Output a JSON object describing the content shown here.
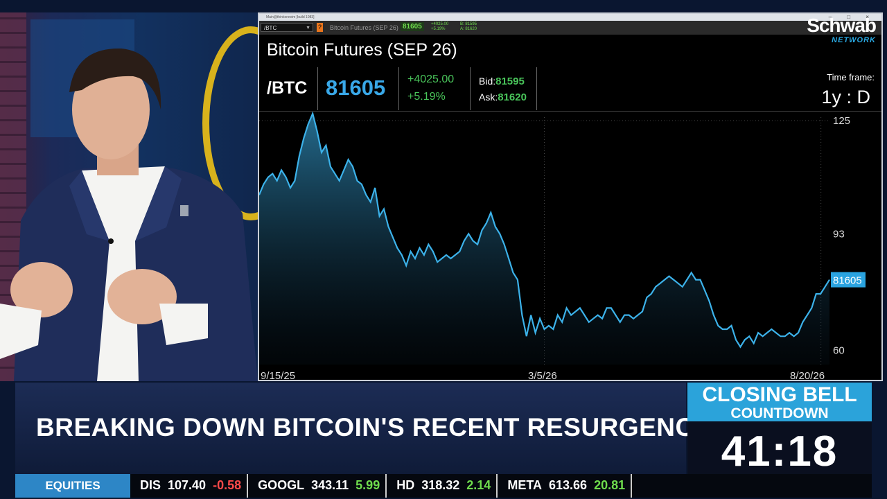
{
  "window": {
    "title": "Main@thinkorswim [build 1983]",
    "controls": "– □ ×"
  },
  "toolbar": {
    "symbol": "/BTC",
    "description": "Bitcoin Futures (SEP 26)",
    "last": "81605",
    "change_line1": "+4025.00",
    "change_line2": "+5.19%",
    "bid_line": "B: 81595",
    "ask_line": "A: 81620"
  },
  "quote": {
    "title": "Bitcoin Futures (SEP 26)",
    "symbol": "/BTC",
    "price": "81605",
    "change": "+4025.00",
    "change_pct": "+5.19%",
    "bid_label": "Bid:",
    "bid": "81595",
    "ask_label": "Ask:",
    "ask": "81620",
    "timeframe_label": "Time frame:",
    "timeframe": "1y : D"
  },
  "colors": {
    "price_blue": "#39a8e8",
    "positive": "#49c45a",
    "negative": "#ff4a4a",
    "brand_blue": "#2ba3da"
  },
  "chart_data": {
    "type": "area",
    "title": "",
    "xlabel": "",
    "ylabel": "",
    "x_tick_labels": [
      "9/15/25",
      "3/5/26",
      "8/20/26"
    ],
    "y_tick_values": [
      125,
      93,
      60
    ],
    "ylim": [
      56,
      126
    ],
    "y_unit": "thousands",
    "grid": true,
    "last_value_label": "81605",
    "series": [
      {
        "values": [
          104,
          107,
          109,
          110,
          108,
          111,
          109,
          106,
          108,
          115,
          120,
          124,
          127,
          122,
          116,
          118,
          112,
          110,
          108,
          111,
          114,
          112,
          108,
          107,
          104,
          102,
          106,
          98,
          100,
          95,
          92,
          89,
          87,
          84,
          88,
          86,
          89,
          87,
          90,
          88,
          85,
          86,
          87,
          86,
          87,
          88,
          91,
          93,
          91,
          90,
          94,
          96,
          99,
          95,
          93,
          90,
          86,
          82,
          80,
          70,
          64,
          70,
          65,
          69,
          66,
          67,
          66,
          70,
          68,
          72,
          70,
          71,
          72,
          70,
          68,
          69,
          70,
          69,
          72,
          72,
          70,
          68,
          70,
          70,
          69,
          70,
          71,
          75,
          76,
          78,
          79,
          80,
          81,
          80,
          79,
          78,
          80,
          82,
          80,
          80,
          77,
          74,
          70,
          67,
          66,
          66,
          67,
          63,
          61,
          63,
          64,
          62,
          65,
          64,
          65,
          66,
          65,
          64,
          64,
          65,
          64,
          65,
          68,
          70,
          72,
          76,
          76,
          78,
          80
        ]
      }
    ]
  },
  "brand": {
    "name": "Schwab",
    "network": "NETWORK"
  },
  "lower_third": {
    "headline": "BREAKING DOWN BITCOIN'S RECENT RESURGENCE"
  },
  "countdown": {
    "title_line1": "CLOSING BELL",
    "title_line2": "COUNTDOWN",
    "time": "41:18"
  },
  "ticker": {
    "category": "EQUITIES",
    "items": [
      {
        "symbol": "DIS",
        "price": "107.40",
        "change": "-0.58",
        "direction": "down"
      },
      {
        "symbol": "GOOGL",
        "price": "343.11",
        "change": "5.99",
        "direction": "up"
      },
      {
        "symbol": "HD",
        "price": "318.32",
        "change": "2.14",
        "direction": "up"
      },
      {
        "symbol": "META",
        "price": "613.66",
        "change": "20.81",
        "direction": "up"
      }
    ]
  }
}
